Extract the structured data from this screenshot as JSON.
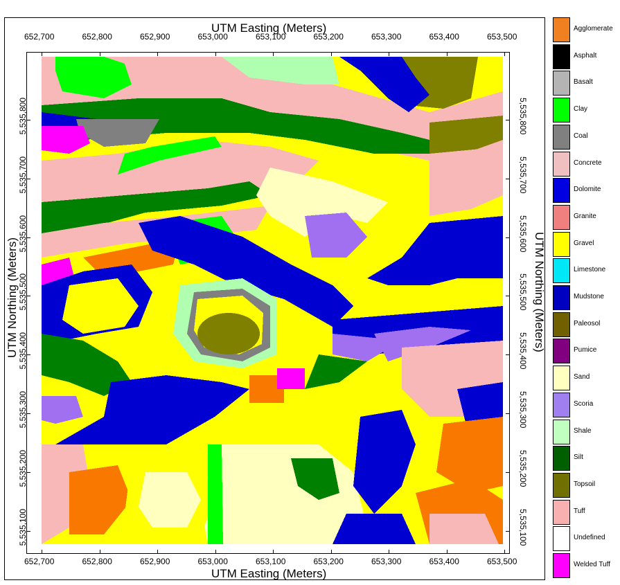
{
  "map": {
    "x_axis_title_top": "UTM Easting (Meters)",
    "x_axis_title_bottom": "UTM Easting (Meters)",
    "y_axis_title_left": "UTM Northing (Meters)",
    "y_axis_title_right": "UTM Northing (Meters)",
    "easting_ticks": [
      "652,700",
      "652,800",
      "652,900",
      "653,000",
      "653,100",
      "653,200",
      "653,300",
      "653,400",
      "653,500"
    ],
    "northing_ticks": [
      "5,535,800",
      "5,535,700",
      "5,535,600",
      "5,535,500",
      "5,535,400",
      "5,535,300",
      "5,535,200",
      "5,535,100"
    ],
    "easting_values": [
      652700,
      652800,
      652900,
      653000,
      653100,
      653200,
      653300,
      653400,
      653500
    ],
    "northing_values": [
      5535800,
      5535700,
      5535600,
      5535500,
      5535400,
      5535300,
      5535200,
      5535100
    ],
    "easting_range": [
      652700,
      653550
    ],
    "northing_range": [
      5535000,
      5535900
    ]
  },
  "legend": {
    "items": [
      {
        "label": "Agglomerate",
        "color": "#f08020",
        "icon": "agglomerate-pattern-icon"
      },
      {
        "label": "Asphalt",
        "color": "#000000",
        "icon": "asphalt-pattern-icon"
      },
      {
        "label": "Basalt",
        "color": "#b4b4b4",
        "icon": "basalt-pattern-icon"
      },
      {
        "label": "Clay",
        "color": "#00ff00",
        "icon": "clay-pattern-icon"
      },
      {
        "label": "Coal",
        "color": "#808080",
        "icon": "coal-pattern-icon"
      },
      {
        "label": "Concrete",
        "color": "#f0c0c0",
        "icon": "concrete-pattern-icon"
      },
      {
        "label": "Dolomite",
        "color": "#0000e0",
        "icon": "dolomite-pattern-icon"
      },
      {
        "label": "Granite",
        "color": "#f08080",
        "icon": "granite-pattern-icon"
      },
      {
        "label": "Gravel",
        "color": "#ffff00",
        "icon": "gravel-pattern-icon"
      },
      {
        "label": "Limestone",
        "color": "#00e8f8",
        "icon": "limestone-pattern-icon"
      },
      {
        "label": "Mudstone",
        "color": "#0000c0",
        "icon": "mudstone-pattern-icon"
      },
      {
        "label": "Paleosol",
        "color": "#706000",
        "icon": "paleosol-pattern-icon"
      },
      {
        "label": "Pumice",
        "color": "#800080",
        "icon": "pumice-pattern-icon"
      },
      {
        "label": "Sand",
        "color": "#ffffc0",
        "icon": "sand-pattern-icon"
      },
      {
        "label": "Scoria",
        "color": "#a080f0",
        "icon": "scoria-pattern-icon"
      },
      {
        "label": "Shale",
        "color": "#c0ffc0",
        "icon": "shale-pattern-icon"
      },
      {
        "label": "Silt",
        "color": "#006000",
        "icon": "silt-pattern-icon"
      },
      {
        "label": "Topsoil",
        "color": "#707000",
        "icon": "topsoil-pattern-icon"
      },
      {
        "label": "Tuff",
        "color": "#f8b0b0",
        "icon": "tuff-pattern-icon"
      },
      {
        "label": "Undefined",
        "color": "#ffffff",
        "icon": "undefined-pattern-icon"
      },
      {
        "label": "Welded Tuff",
        "color": "#ff00ff",
        "icon": "welded-tuff-pattern-icon"
      }
    ]
  },
  "lithology_colors": {
    "yellow": "#ffff00",
    "pink": "#f8b8b8",
    "blue": "#0000d0",
    "green": "#008000",
    "lime": "#00ff00",
    "orange": "#f87800",
    "olive": "#808000",
    "lightyellow": "#ffffc0",
    "lightgreen": "#b0ffb0",
    "purple": "#a070f0",
    "magenta": "#ff00ff",
    "gray": "#808080"
  }
}
